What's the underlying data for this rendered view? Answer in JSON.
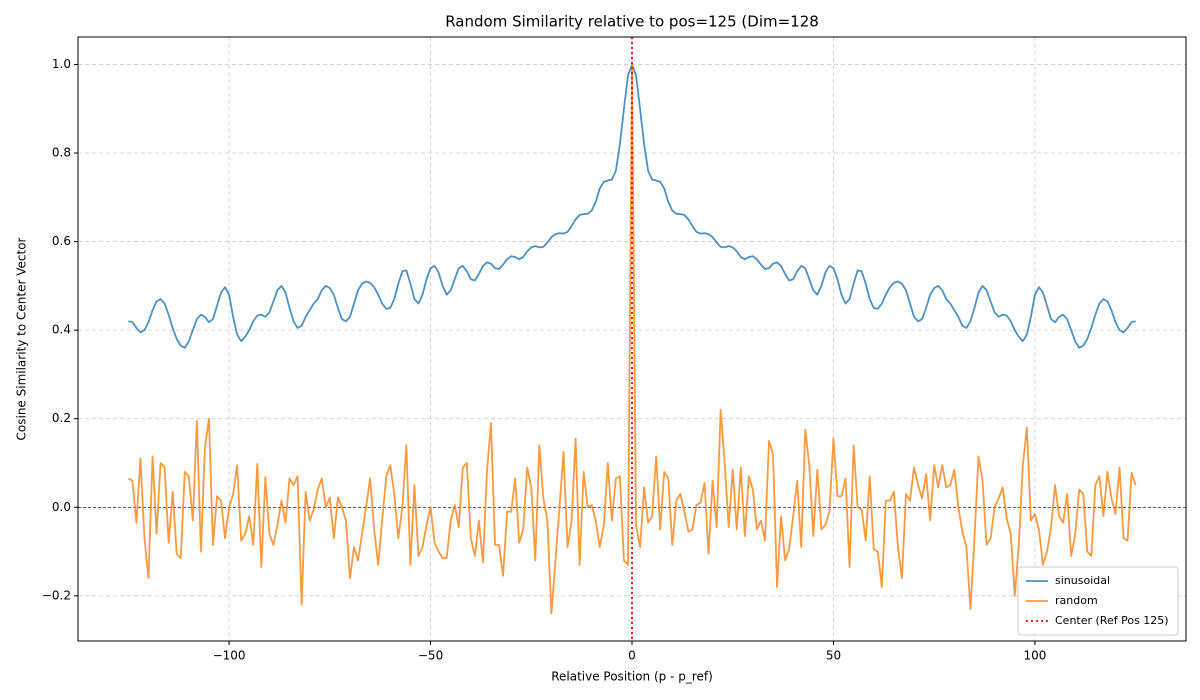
{
  "chart_data": {
    "type": "line",
    "title": "Random Similarity relative to pos=125 (Dim=128",
    "x_label": "Relative Position (p - p_ref)",
    "y_label": "Cosine Similarity to Center Vector",
    "xlim": [
      -137.5,
      137.5
    ],
    "ylim": [
      -0.302,
      1.062
    ],
    "xticks": [
      {
        "value": -100,
        "label": "−100"
      },
      {
        "value": -50,
        "label": "−50"
      },
      0,
      50,
      100
    ],
    "yticks": [
      {
        "value": -0.2,
        "label": "−0.2"
      },
      {
        "value": 0,
        "label": "0.0"
      },
      0.2,
      0.4,
      0.6,
      0.8,
      {
        "value": 1,
        "label": "1.0"
      }
    ],
    "grid": true,
    "legend": "lower right",
    "x": [
      -125,
      -124,
      -123,
      -122,
      -121,
      -120,
      -119,
      -118,
      -117,
      -116,
      -115,
      -114,
      -113,
      -112,
      -111,
      -110,
      -109,
      -108,
      -107,
      -106,
      -105,
      -104,
      -103,
      -102,
      -101,
      -100,
      -99,
      -98,
      -97,
      -96,
      -95,
      -94,
      -93,
      -92,
      -91,
      -90,
      -89,
      -88,
      -87,
      -86,
      -85,
      -84,
      -83,
      -82,
      -81,
      -80,
      -79,
      -78,
      -77,
      -76,
      -75,
      -74,
      -73,
      -72,
      -71,
      -70,
      -69,
      -68,
      -67,
      -66,
      -65,
      -64,
      -63,
      -62,
      -61,
      -60,
      -59,
      -58,
      -57,
      -56,
      -55,
      -54,
      -53,
      -52,
      -51,
      -50,
      -49,
      -48,
      -47,
      -46,
      -45,
      -44,
      -43,
      -42,
      -41,
      -40,
      -39,
      -38,
      -37,
      -36,
      -35,
      -34,
      -33,
      -32,
      -31,
      -30,
      -29,
      -28,
      -27,
      -26,
      -25,
      -24,
      -23,
      -22,
      -21,
      -20,
      -19,
      -18,
      -17,
      -16,
      -15,
      -14,
      -13,
      -12,
      -11,
      -10,
      -9,
      -8,
      -7,
      -6,
      -5,
      -4,
      -3,
      -2,
      -1,
      0,
      1,
      2,
      3,
      4,
      5,
      6,
      7,
      8,
      9,
      10,
      11,
      12,
      13,
      14,
      15,
      16,
      17,
      18,
      19,
      20,
      21,
      22,
      23,
      24,
      25,
      26,
      27,
      28,
      29,
      30,
      31,
      32,
      33,
      34,
      35,
      36,
      37,
      38,
      39,
      40,
      41,
      42,
      43,
      44,
      45,
      46,
      47,
      48,
      49,
      50,
      51,
      52,
      53,
      54,
      55,
      56,
      57,
      58,
      59,
      60,
      61,
      62,
      63,
      64,
      65,
      66,
      67,
      68,
      69,
      70,
      71,
      72,
      73,
      74,
      75,
      76,
      77,
      78,
      79,
      80,
      81,
      82,
      83,
      84,
      85,
      86,
      87,
      88,
      89,
      90,
      91,
      92,
      93,
      94,
      95,
      96,
      97,
      98,
      99,
      100,
      101,
      102,
      103,
      104,
      105,
      106,
      107,
      108,
      109,
      110,
      111,
      112,
      113,
      114,
      115,
      116,
      117,
      118,
      119,
      120,
      121,
      122,
      123,
      124,
      125
    ],
    "series": [
      {
        "name": "sinusoidal",
        "color": "#1f77b4",
        "values": [
          0.42,
          0.418,
          0.405,
          0.395,
          0.4,
          0.418,
          0.445,
          0.465,
          0.47,
          0.46,
          0.435,
          0.405,
          0.38,
          0.365,
          0.36,
          0.375,
          0.4,
          0.425,
          0.435,
          0.43,
          0.418,
          0.425,
          0.455,
          0.485,
          0.497,
          0.48,
          0.43,
          0.39,
          0.375,
          0.385,
          0.4,
          0.42,
          0.433,
          0.435,
          0.43,
          0.44,
          0.465,
          0.49,
          0.5,
          0.485,
          0.45,
          0.42,
          0.405,
          0.41,
          0.43,
          0.445,
          0.46,
          0.47,
          0.49,
          0.5,
          0.495,
          0.48,
          0.45,
          0.425,
          0.42,
          0.43,
          0.46,
          0.49,
          0.505,
          0.51,
          0.507,
          0.497,
          0.48,
          0.46,
          0.448,
          0.45,
          0.47,
          0.505,
          0.533,
          0.535,
          0.505,
          0.47,
          0.46,
          0.48,
          0.515,
          0.54,
          0.545,
          0.53,
          0.5,
          0.48,
          0.49,
          0.515,
          0.54,
          0.545,
          0.533,
          0.515,
          0.512,
          0.527,
          0.545,
          0.553,
          0.55,
          0.54,
          0.538,
          0.548,
          0.56,
          0.567,
          0.565,
          0.56,
          0.565,
          0.578,
          0.587,
          0.59,
          0.587,
          0.588,
          0.598,
          0.61,
          0.617,
          0.619,
          0.618,
          0.622,
          0.635,
          0.65,
          0.66,
          0.662,
          0.663,
          0.67,
          0.69,
          0.72,
          0.735,
          0.738,
          0.74,
          0.76,
          0.82,
          0.9,
          0.975,
          1.0,
          0.975,
          0.9,
          0.82,
          0.76,
          0.74,
          0.738,
          0.735,
          0.72,
          0.69,
          0.67,
          0.663,
          0.662,
          0.66,
          0.65,
          0.635,
          0.622,
          0.618,
          0.619,
          0.617,
          0.61,
          0.598,
          0.588,
          0.587,
          0.59,
          0.587,
          0.578,
          0.565,
          0.56,
          0.565,
          0.567,
          0.56,
          0.548,
          0.538,
          0.54,
          0.55,
          0.553,
          0.545,
          0.527,
          0.512,
          0.515,
          0.533,
          0.545,
          0.54,
          0.515,
          0.49,
          0.48,
          0.5,
          0.53,
          0.545,
          0.54,
          0.515,
          0.48,
          0.46,
          0.47,
          0.505,
          0.535,
          0.533,
          0.505,
          0.47,
          0.45,
          0.448,
          0.46,
          0.48,
          0.497,
          0.507,
          0.51,
          0.505,
          0.49,
          0.46,
          0.43,
          0.42,
          0.425,
          0.45,
          0.48,
          0.495,
          0.5,
          0.49,
          0.47,
          0.46,
          0.445,
          0.43,
          0.41,
          0.405,
          0.42,
          0.45,
          0.485,
          0.5,
          0.49,
          0.465,
          0.44,
          0.43,
          0.435,
          0.433,
          0.42,
          0.4,
          0.385,
          0.375,
          0.39,
          0.43,
          0.48,
          0.497,
          0.485,
          0.455,
          0.425,
          0.418,
          0.43,
          0.435,
          0.425,
          0.4,
          0.375,
          0.36,
          0.365,
          0.38,
          0.405,
          0.435,
          0.46,
          0.47,
          0.465,
          0.445,
          0.418,
          0.4,
          0.395,
          0.405,
          0.418,
          0.42
        ]
      },
      {
        "name": "random",
        "color": "#ff7f0e",
        "values": [
          0.065,
          0.06,
          -0.035,
          0.11,
          -0.07,
          -0.16,
          0.115,
          -0.06,
          0.1,
          0.09,
          -0.08,
          0.035,
          -0.105,
          -0.115,
          0.08,
          0.07,
          -0.03,
          0.195,
          -0.1,
          0.135,
          0.2,
          -0.085,
          0.025,
          0.015,
          -0.07,
          0.0,
          0.03,
          0.095,
          -0.075,
          -0.06,
          -0.02,
          -0.085,
          0.098,
          -0.135,
          0.068,
          -0.06,
          -0.085,
          -0.04,
          0.015,
          -0.035,
          0.065,
          0.05,
          0.07,
          -0.22,
          0.035,
          -0.03,
          -0.005,
          0.04,
          0.065,
          0.0,
          0.022,
          -0.07,
          0.022,
          0.0,
          -0.03,
          -0.16,
          -0.09,
          -0.12,
          -0.06,
          0.0,
          0.065,
          -0.05,
          -0.13,
          -0.03,
          0.07,
          0.095,
          0.03,
          -0.07,
          0.0,
          0.14,
          -0.13,
          0.05,
          -0.11,
          -0.09,
          -0.04,
          0.0,
          -0.08,
          -0.1,
          -0.115,
          -0.115,
          -0.03,
          0.005,
          -0.045,
          0.09,
          0.1,
          -0.07,
          -0.11,
          -0.03,
          -0.125,
          0.08,
          0.19,
          -0.085,
          -0.085,
          -0.155,
          -0.01,
          -0.01,
          0.065,
          -0.08,
          -0.05,
          0.09,
          0.045,
          -0.12,
          0.14,
          0.02,
          -0.03,
          -0.24,
          -0.12,
          0.0,
          0.125,
          -0.09,
          -0.03,
          0.155,
          -0.13,
          0.08,
          0.0,
          0.005,
          -0.03,
          -0.09,
          -0.04,
          0.1,
          -0.03,
          0.065,
          0.07,
          -0.12,
          -0.13,
          1.0,
          -0.04,
          -0.09,
          0.045,
          -0.035,
          -0.02,
          0.115,
          -0.05,
          0.08,
          0.065,
          -0.085,
          0.015,
          0.03,
          -0.01,
          -0.055,
          -0.05,
          0.005,
          0.01,
          0.055,
          -0.105,
          0.06,
          -0.045,
          0.22,
          0.1,
          -0.045,
          0.085,
          -0.05,
          0.09,
          -0.065,
          0.07,
          0.04,
          -0.05,
          -0.03,
          -0.075,
          0.15,
          0.12,
          -0.18,
          -0.02,
          -0.12,
          -0.095,
          -0.02,
          0.06,
          -0.09,
          0.175,
          0.095,
          -0.065,
          0.085,
          -0.05,
          -0.04,
          -0.01,
          0.155,
          0.025,
          0.025,
          0.065,
          -0.135,
          0.14,
          0.0,
          -0.005,
          -0.075,
          0.07,
          -0.095,
          -0.1,
          -0.18,
          0.015,
          0.015,
          0.035,
          -0.09,
          -0.16,
          0.03,
          0.015,
          0.09,
          0.05,
          0.02,
          0.075,
          -0.03,
          0.095,
          0.045,
          0.095,
          0.045,
          0.05,
          0.085,
          0.0,
          -0.055,
          -0.09,
          -0.23,
          -0.07,
          0.115,
          0.06,
          -0.085,
          -0.07,
          0.0,
          0.02,
          0.045,
          -0.025,
          -0.06,
          -0.2,
          -0.085,
          0.095,
          0.18,
          -0.03,
          -0.015,
          -0.05,
          -0.13,
          -0.1,
          -0.045,
          0.05,
          -0.02,
          -0.035,
          0.03,
          -0.11,
          -0.06,
          0.04,
          0.03,
          -0.1,
          -0.11,
          0.05,
          0.07,
          -0.02,
          0.08,
          0.02,
          -0.015,
          0.09,
          -0.07,
          -0.075,
          0.078,
          0.05
        ]
      }
    ],
    "vlines": [
      {
        "name": "Center (Ref Pos 125)",
        "x": 0,
        "color": "#ff0000"
      }
    ],
    "hlines": [
      {
        "y": 0,
        "color": "#000000"
      }
    ]
  }
}
